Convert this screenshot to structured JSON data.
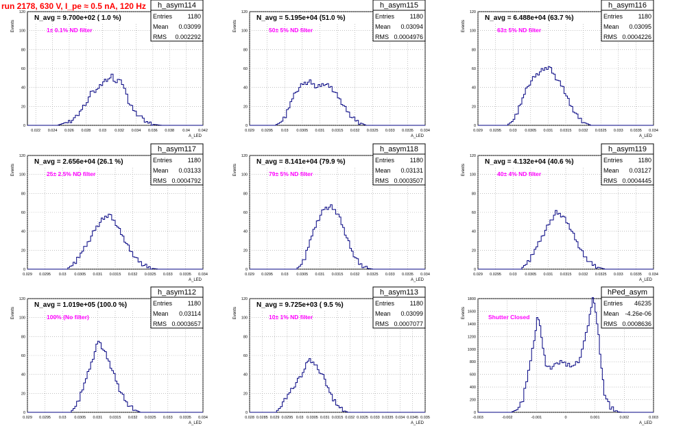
{
  "run_title": "run 2178,   630 V, I_pe ≈ 0.5 nA, 120 Hz",
  "stats_labels": {
    "entries": "Entries",
    "mean": "Mean",
    "rms": "RMS"
  },
  "chart_data": [
    {
      "type": "bar",
      "name": "h_asym114",
      "navg": "N_avg = 9.700e+02 ( 1.0 %)",
      "filter": "1± 0.1% ND filter",
      "entries": "1180",
      "mean": "0.03099",
      "rms": "0.002292",
      "ylabel": "Events",
      "xlabel": "A_LED",
      "xlim": [
        0.021,
        0.042
      ],
      "ylim": [
        0,
        120
      ],
      "yticks": [
        0,
        20,
        40,
        60,
        80,
        100,
        120
      ],
      "xticks": [
        "0.022",
        "0.024",
        "0.026",
        "0.028",
        "0.03",
        "0.032",
        "0.034",
        "0.036",
        "0.038",
        "0.04",
        "0.042"
      ],
      "xtick_vals": [
        0.022,
        0.024,
        0.026,
        0.028,
        0.03,
        0.032,
        0.034,
        0.036,
        0.038,
        0.04,
        0.042
      ],
      "grid": true,
      "shape": [
        [
          0.021,
          0
        ],
        [
          0.0245,
          0
        ],
        [
          0.0255,
          3
        ],
        [
          0.0265,
          6
        ],
        [
          0.0272,
          14
        ],
        [
          0.0278,
          22
        ],
        [
          0.0285,
          34
        ],
        [
          0.0292,
          38
        ],
        [
          0.03,
          46
        ],
        [
          0.0306,
          48
        ],
        [
          0.031,
          52
        ],
        [
          0.0315,
          45
        ],
        [
          0.032,
          50
        ],
        [
          0.0325,
          38
        ],
        [
          0.033,
          24
        ],
        [
          0.0338,
          14
        ],
        [
          0.0345,
          8
        ],
        [
          0.0352,
          4
        ],
        [
          0.036,
          1
        ],
        [
          0.037,
          0
        ],
        [
          0.042,
          0
        ]
      ]
    },
    {
      "type": "bar",
      "name": "h_asym115",
      "navg": "N_avg = 5.195e+04 (51.0 %)",
      "filter": "50± 5% ND filter",
      "entries": "1180",
      "mean": "0.03094",
      "rms": "0.0004976",
      "ylabel": "Events",
      "xlabel": "A_LED",
      "xlim": [
        0.029,
        0.034
      ],
      "ylim": [
        0,
        120
      ],
      "yticks": [
        0,
        20,
        40,
        60,
        80,
        100,
        120
      ],
      "xticks": [
        "0.029",
        "0.0295",
        "0.03",
        "0.0305",
        "0.031",
        "0.0315",
        "0.032",
        "0.0325",
        "0.033",
        "0.0335",
        "0.034"
      ],
      "xtick_vals": [
        0.029,
        0.0295,
        0.03,
        0.0305,
        0.031,
        0.0315,
        0.032,
        0.0325,
        0.033,
        0.0335,
        0.034
      ],
      "grid": true,
      "shape": [
        [
          0.029,
          0
        ],
        [
          0.0297,
          0
        ],
        [
          0.02985,
          3
        ],
        [
          0.03,
          10
        ],
        [
          0.03015,
          24
        ],
        [
          0.0303,
          36
        ],
        [
          0.0305,
          44
        ],
        [
          0.0307,
          46
        ],
        [
          0.0309,
          40
        ],
        [
          0.0311,
          44
        ],
        [
          0.0313,
          40
        ],
        [
          0.0315,
          30
        ],
        [
          0.0317,
          18
        ],
        [
          0.0319,
          8
        ],
        [
          0.0321,
          3
        ],
        [
          0.0323,
          0
        ],
        [
          0.034,
          0
        ]
      ]
    },
    {
      "type": "bar",
      "name": "h_asym116",
      "navg": "N_avg = 6.488e+04 (63.7 %)",
      "filter": "63± 5% ND filter",
      "entries": "1180",
      "mean": "0.03095",
      "rms": "0.0004226",
      "ylabel": "Events",
      "xlabel": "A_LED",
      "xlim": [
        0.029,
        0.034
      ],
      "ylim": [
        0,
        120
      ],
      "yticks": [
        0,
        20,
        40,
        60,
        80,
        100,
        120
      ],
      "xticks": [
        "0.029",
        "0.0295",
        "0.03",
        "0.0305",
        "0.031",
        "0.0315",
        "0.032",
        "0.0325",
        "0.033",
        "0.0335",
        "0.034"
      ],
      "xtick_vals": [
        0.029,
        0.0295,
        0.03,
        0.0305,
        0.031,
        0.0315,
        0.032,
        0.0325,
        0.033,
        0.0335,
        0.034
      ],
      "grid": true,
      "shape": [
        [
          0.029,
          0
        ],
        [
          0.0298,
          0
        ],
        [
          0.02995,
          4
        ],
        [
          0.0301,
          14
        ],
        [
          0.03025,
          28
        ],
        [
          0.0304,
          42
        ],
        [
          0.0306,
          52
        ],
        [
          0.0308,
          58
        ],
        [
          0.031,
          62
        ],
        [
          0.0312,
          50
        ],
        [
          0.0314,
          40
        ],
        [
          0.0316,
          22
        ],
        [
          0.0318,
          10
        ],
        [
          0.032,
          3
        ],
        [
          0.0322,
          0
        ],
        [
          0.034,
          0
        ]
      ]
    },
    {
      "type": "bar",
      "name": "h_asym117",
      "navg": "N_avg = 2.656e+04 (26.1 %)",
      "filter": "25± 2.5% ND filter",
      "entries": "1180",
      "mean": "0.03133",
      "rms": "0.0004792",
      "ylabel": "Events",
      "xlabel": "A_LED",
      "xlim": [
        0.029,
        0.034
      ],
      "ylim": [
        0,
        120
      ],
      "yticks": [
        0,
        20,
        40,
        60,
        80,
        100,
        120
      ],
      "xticks": [
        "0.029",
        "0.0295",
        "0.03",
        "0.0305",
        "0.031",
        "0.0315",
        "0.032",
        "0.0325",
        "0.033",
        "0.0335",
        "0.034"
      ],
      "xtick_vals": [
        0.029,
        0.0295,
        0.03,
        0.0305,
        0.031,
        0.0315,
        0.032,
        0.0325,
        0.033,
        0.0335,
        0.034
      ],
      "grid": true,
      "shape": [
        [
          0.029,
          0
        ],
        [
          0.0301,
          0
        ],
        [
          0.0302,
          3
        ],
        [
          0.03035,
          8
        ],
        [
          0.0305,
          16
        ],
        [
          0.0307,
          28
        ],
        [
          0.0309,
          42
        ],
        [
          0.0311,
          52
        ],
        [
          0.0313,
          58
        ],
        [
          0.0315,
          48
        ],
        [
          0.0317,
          34
        ],
        [
          0.0319,
          20
        ],
        [
          0.0321,
          10
        ],
        [
          0.0323,
          4
        ],
        [
          0.0325,
          1
        ],
        [
          0.0327,
          0
        ],
        [
          0.034,
          0
        ]
      ]
    },
    {
      "type": "bar",
      "name": "h_asym118",
      "navg": "N_avg = 8.141e+04 (79.9 %)",
      "filter": "79± 5% ND filter",
      "entries": "1180",
      "mean": "0.03131",
      "rms": "0.0003507",
      "ylabel": "Events",
      "xlabel": "A_LED",
      "xlim": [
        0.029,
        0.034
      ],
      "ylim": [
        0,
        120
      ],
      "yticks": [
        0,
        20,
        40,
        60,
        80,
        100,
        120
      ],
      "xticks": [
        "0.029",
        "0.0295",
        "0.03",
        "0.0305",
        "0.031",
        "0.0315",
        "0.032",
        "0.0325",
        "0.033",
        "0.0335",
        "0.034"
      ],
      "xtick_vals": [
        0.029,
        0.0295,
        0.03,
        0.0305,
        0.031,
        0.0315,
        0.032,
        0.0325,
        0.033,
        0.0335,
        0.034
      ],
      "grid": true,
      "shape": [
        [
          0.029,
          0
        ],
        [
          0.0303,
          0
        ],
        [
          0.0304,
          3
        ],
        [
          0.03055,
          12
        ],
        [
          0.0307,
          30
        ],
        [
          0.0309,
          50
        ],
        [
          0.0311,
          64
        ],
        [
          0.0313,
          66
        ],
        [
          0.0315,
          58
        ],
        [
          0.0317,
          38
        ],
        [
          0.0319,
          18
        ],
        [
          0.0321,
          6
        ],
        [
          0.0323,
          1
        ],
        [
          0.0325,
          0
        ],
        [
          0.034,
          0
        ]
      ]
    },
    {
      "type": "bar",
      "name": "h_asym119",
      "navg": "N_avg = 4.132e+04 (40.6 %)",
      "filter": "40± 4% ND filter",
      "entries": "1180",
      "mean": "0.03127",
      "rms": "0.0004445",
      "ylabel": "Events",
      "xlabel": "A_LED",
      "xlim": [
        0.029,
        0.034
      ],
      "ylim": [
        0,
        120
      ],
      "yticks": [
        0,
        20,
        40,
        60,
        80,
        100,
        120
      ],
      "xticks": [
        "0.029",
        "0.0295",
        "0.03",
        "0.0305",
        "0.031",
        "0.0315",
        "0.032",
        "0.0325",
        "0.033",
        "0.0335",
        "0.034"
      ],
      "xtick_vals": [
        0.029,
        0.0295,
        0.03,
        0.0305,
        0.031,
        0.0315,
        0.032,
        0.0325,
        0.033,
        0.0335,
        0.034
      ],
      "grid": true,
      "shape": [
        [
          0.029,
          0
        ],
        [
          0.0302,
          0
        ],
        [
          0.0303,
          4
        ],
        [
          0.03045,
          10
        ],
        [
          0.0306,
          20
        ],
        [
          0.0308,
          34
        ],
        [
          0.031,
          48
        ],
        [
          0.0312,
          60
        ],
        [
          0.0314,
          56
        ],
        [
          0.0316,
          44
        ],
        [
          0.0318,
          28
        ],
        [
          0.032,
          14
        ],
        [
          0.0322,
          6
        ],
        [
          0.0324,
          2
        ],
        [
          0.0326,
          0
        ],
        [
          0.034,
          0
        ]
      ]
    },
    {
      "type": "bar",
      "name": "h_asym112",
      "navg": "N_avg = 1.019e+05 (100.0 %)",
      "filter": "100% (No filter)",
      "entries": "1180",
      "mean": "0.03114",
      "rms": "0.0003657",
      "ylabel": "Events",
      "xlabel": "A_LED",
      "xlim": [
        0.029,
        0.034
      ],
      "ylim": [
        0,
        120
      ],
      "yticks": [
        0,
        20,
        40,
        60,
        80,
        100,
        120
      ],
      "xticks": [
        "0.029",
        "0.0295",
        "0.03",
        "0.0305",
        "0.031",
        "0.0315",
        "0.032",
        "0.0325",
        "0.033",
        "0.0335",
        "0.034"
      ],
      "xtick_vals": [
        0.029,
        0.0295,
        0.03,
        0.0305,
        0.031,
        0.0315,
        0.032,
        0.0325,
        0.033,
        0.0335,
        0.034
      ],
      "grid": true,
      "shape": [
        [
          0.029,
          0
        ],
        [
          0.0302,
          0
        ],
        [
          0.0303,
          4
        ],
        [
          0.03045,
          14
        ],
        [
          0.0306,
          30
        ],
        [
          0.0308,
          52
        ],
        [
          0.031,
          76
        ],
        [
          0.0312,
          62
        ],
        [
          0.0314,
          44
        ],
        [
          0.0316,
          24
        ],
        [
          0.0318,
          10
        ],
        [
          0.032,
          3
        ],
        [
          0.0322,
          0
        ],
        [
          0.034,
          0
        ]
      ]
    },
    {
      "type": "bar",
      "name": "h_asym113",
      "navg": "N_avg = 9.725e+03 ( 9.5 %)",
      "filter": "10± 1% ND filter",
      "entries": "1180",
      "mean": "0.03099",
      "rms": "0.0007077",
      "ylabel": "Events",
      "xlabel": "A_LED",
      "xlim": [
        0.028,
        0.035
      ],
      "ylim": [
        0,
        120
      ],
      "yticks": [
        0,
        20,
        40,
        60,
        80,
        100,
        120
      ],
      "xticks": [
        "0.028",
        "0.0285",
        "0.029",
        "0.0295",
        "0.03",
        "0.0305",
        "0.031",
        "0.0315",
        "0.032",
        "0.0325",
        "0.033",
        "0.0335",
        "0.034",
        "0.0345",
        "0.035"
      ],
      "xtick_vals": [
        0.028,
        0.0285,
        0.029,
        0.0295,
        0.03,
        0.0305,
        0.031,
        0.0315,
        0.032,
        0.0325,
        0.033,
        0.0335,
        0.034,
        0.0345,
        0.035
      ],
      "grid": true,
      "shape": [
        [
          0.028,
          0
        ],
        [
          0.029,
          0
        ],
        [
          0.02915,
          4
        ],
        [
          0.0293,
          10
        ],
        [
          0.0295,
          18
        ],
        [
          0.0297,
          26
        ],
        [
          0.0299,
          34
        ],
        [
          0.0301,
          42
        ],
        [
          0.0303,
          56
        ],
        [
          0.0305,
          52
        ],
        [
          0.0307,
          46
        ],
        [
          0.0309,
          38
        ],
        [
          0.0311,
          26
        ],
        [
          0.0313,
          14
        ],
        [
          0.0315,
          6
        ],
        [
          0.0317,
          2
        ],
        [
          0.0319,
          0
        ],
        [
          0.035,
          0
        ]
      ]
    },
    {
      "type": "bar",
      "name": "hPed_asym",
      "navg": "",
      "filter": "Shutter Closed",
      "entries": "46235",
      "mean": "-4.26e-06",
      "rms": "0.0008636",
      "ylabel": "Events",
      "xlabel": "A_LED",
      "xlim": [
        -0.003,
        0.003
      ],
      "ylim": [
        0,
        1800
      ],
      "yticks": [
        0,
        200,
        400,
        600,
        800,
        1000,
        1200,
        1400,
        1600,
        1800
      ],
      "xticks": [
        "-0.003",
        "-0.002",
        "-0.001",
        "0",
        "0.001",
        "0.002",
        "0.003"
      ],
      "xtick_vals": [
        -0.003,
        -0.002,
        -0.001,
        0,
        0.001,
        0.002,
        0.003
      ],
      "grid": true,
      "shape": [
        [
          -0.003,
          0
        ],
        [
          -0.0019,
          0
        ],
        [
          -0.0017,
          40
        ],
        [
          -0.0015,
          200
        ],
        [
          -0.0013,
          650
        ],
        [
          -0.0011,
          1150
        ],
        [
          -0.001,
          1500
        ],
        [
          -0.0009,
          1400
        ],
        [
          -0.0008,
          1000
        ],
        [
          -0.0007,
          750
        ],
        [
          -0.0006,
          700
        ],
        [
          -0.0004,
          740
        ],
        [
          -0.0002,
          820
        ],
        [
          0,
          760
        ],
        [
          0.0002,
          720
        ],
        [
          0.0004,
          800
        ],
        [
          0.0006,
          1100
        ],
        [
          0.0008,
          1550
        ],
        [
          0.0009,
          1800
        ],
        [
          0.001,
          1600
        ],
        [
          0.0011,
          1200
        ],
        [
          0.0012,
          700
        ],
        [
          0.0013,
          300
        ],
        [
          0.0015,
          80
        ],
        [
          0.0017,
          10
        ],
        [
          0.0019,
          0
        ],
        [
          0.003,
          0
        ]
      ]
    }
  ]
}
